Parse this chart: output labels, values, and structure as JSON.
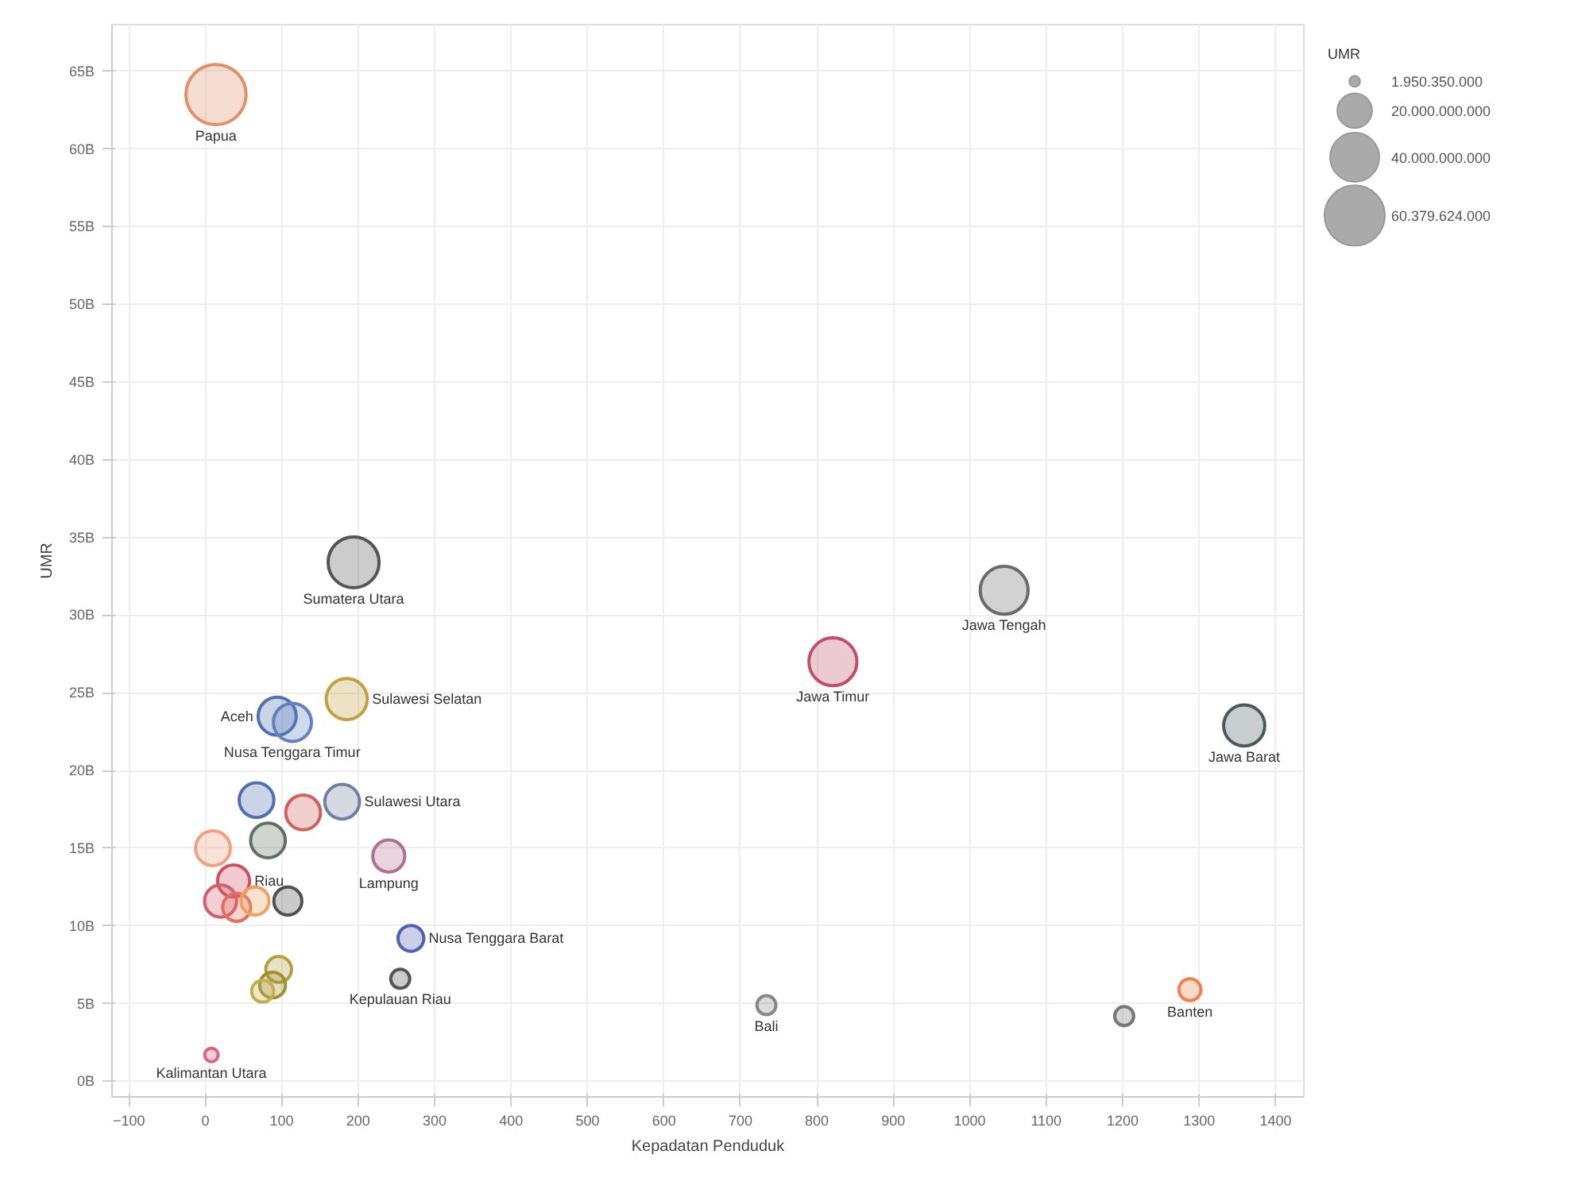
{
  "chart_data": {
    "type": "bubble",
    "xlabel": "Kepadatan Penduduk",
    "ylabel": "UMR",
    "legend_title": "UMR",
    "x": [
      14,
      194,
      1045,
      821,
      1359,
      185,
      94,
      114,
      179,
      67,
      128,
      82,
      10,
      240,
      37,
      20,
      41,
      65,
      108,
      269,
      96,
      88,
      75,
      255,
      8,
      734,
      1288,
      1202
    ],
    "values": [
      63.5,
      33.4,
      31.6,
      27,
      22.9,
      24.6,
      23.5,
      23.1,
      18,
      18.1,
      17.3,
      15.5,
      15,
      14.5,
      12.9,
      11.6,
      11.2,
      11.6,
      11.6,
      9.2,
      7.2,
      6.2,
      5.8,
      6.6,
      1.7,
      4.9,
      5.9,
      4.2
    ],
    "sizes": [
      60000000000,
      43000000000,
      38000000000,
      38000000000,
      28000000000,
      28000000000,
      24000000000,
      24000000000,
      20000000000,
      20000000000,
      20000000000,
      20000000000,
      20000000000,
      17000000000,
      17000000000,
      17000000000,
      13000000000,
      13000000000,
      13000000000,
      11000000000,
      11000000000,
      11000000000,
      8000000000,
      6000000000,
      3000000000,
      6000000000,
      8000000000,
      6000000000
    ],
    "size_legend": [
      {
        "value": 1950350000,
        "label": "1.950.350.000"
      },
      {
        "value": 20000000000,
        "label": "20.000.000.000"
      },
      {
        "value": 40000000000,
        "label": "40.000.000.000"
      },
      {
        "value": 60379624000,
        "label": "60.379.624.000"
      }
    ],
    "colors": [
      "#e0906a",
      "#555555",
      "#6a6a6a",
      "#c0506a",
      "#4a5a5a",
      "#c0a040",
      "#5070b0",
      "#6080c0",
      "#7080a0",
      "#5070b0",
      "#d06060",
      "#607060",
      "#f0a080",
      "#b07090",
      "#d05060",
      "#d06070",
      "#e07060",
      "#f0a060",
      "#505050",
      "#5060b0",
      "#b0a040",
      "#a09030",
      "#c0b050",
      "#555555",
      "#e06080",
      "#888888",
      "#f08050",
      "#777777"
    ],
    "xlim": [
      -122,
      1437
    ],
    "ylim": [
      -1,
      68
    ],
    "xticks": [
      -100,
      0,
      100,
      200,
      300,
      400,
      500,
      600,
      700,
      800,
      900,
      1000,
      1100,
      1200,
      1300,
      1400
    ],
    "yticks": [
      {
        "value": 0,
        "label": "0B"
      },
      {
        "value": 5,
        "label": "5B"
      },
      {
        "value": 10,
        "label": "10B"
      },
      {
        "value": 15,
        "label": "15B"
      },
      {
        "value": 20,
        "label": "20B"
      },
      {
        "value": 25,
        "label": "25B"
      },
      {
        "value": 30,
        "label": "30B"
      },
      {
        "value": 35,
        "label": "35B"
      },
      {
        "value": 40,
        "label": "40B"
      },
      {
        "value": 45,
        "label": "45B"
      },
      {
        "value": 50,
        "label": "50B"
      },
      {
        "value": 55,
        "label": "55B"
      },
      {
        "value": 60,
        "label": "60B"
      },
      {
        "value": 65,
        "label": "65B"
      }
    ],
    "grid": true,
    "annotations": [
      {
        "text": "Papua",
        "x": 14,
        "y": 63.5
      },
      {
        "text": "Sumatera Utara",
        "x": 194,
        "y": 33.4
      },
      {
        "text": "Jawa Tengah",
        "x": 1045,
        "y": 31.6
      },
      {
        "text": "Jawa Timur",
        "x": 821,
        "y": 27
      },
      {
        "text": "Jawa Barat",
        "x": 1359,
        "y": 22.9
      },
      {
        "text": "Sulawesi Selatan",
        "x": 185,
        "y": 24.6
      },
      {
        "text": "Aceh",
        "x": 94,
        "y": 23.5
      },
      {
        "text": "Nusa Tenggara Timur",
        "x": 114,
        "y": 23.1
      },
      {
        "text": "Sulawesi Utara",
        "x": 179,
        "y": 18
      },
      {
        "text": "Lampung",
        "x": 240,
        "y": 14.5
      },
      {
        "text": "Riau",
        "x": 37,
        "y": 12.9
      },
      {
        "text": "Nusa Tenggara Barat",
        "x": 269,
        "y": 9.2
      },
      {
        "text": "Kepulauan Riau",
        "x": 255,
        "y": 6.6
      },
      {
        "text": "Kalimantan Utara",
        "x": 8,
        "y": 1.7
      },
      {
        "text": "Bali",
        "x": 734,
        "y": 4.9
      },
      {
        "text": "Banten",
        "x": 1288,
        "y": 5.9
      }
    ]
  }
}
